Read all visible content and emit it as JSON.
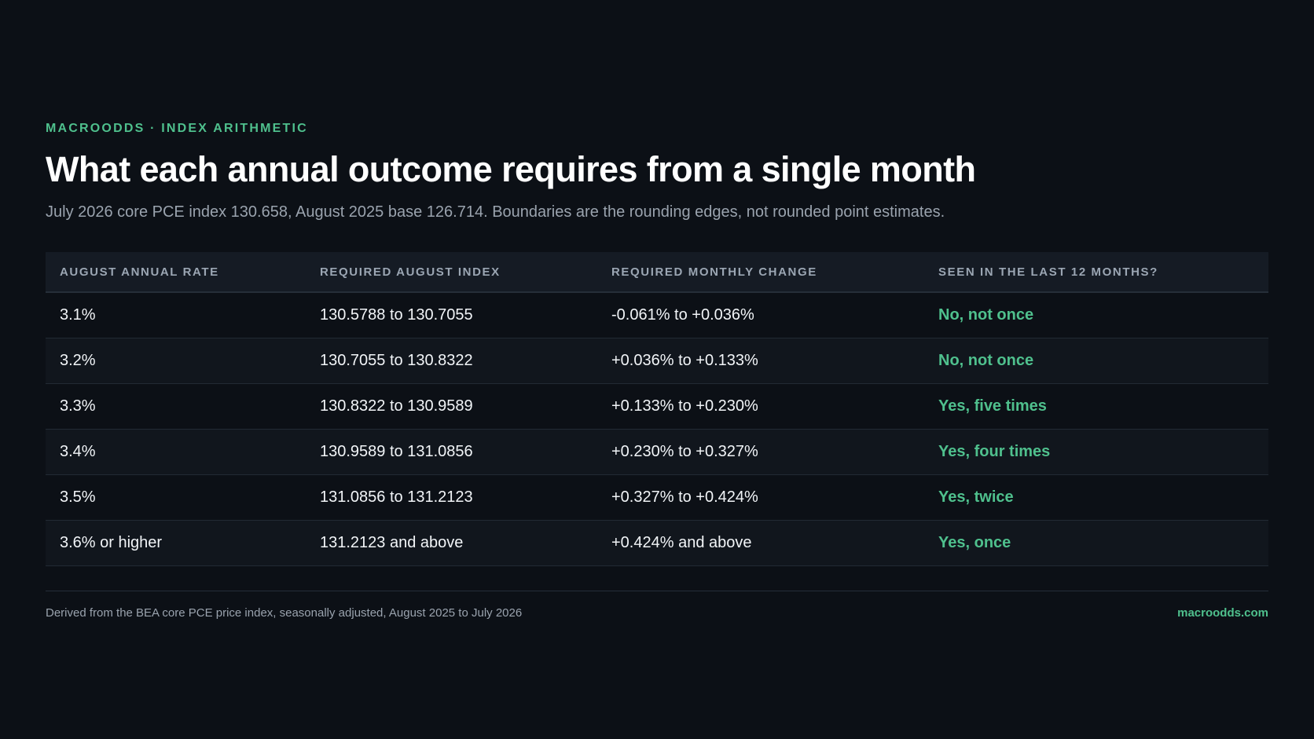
{
  "header": {
    "eyebrow": "MACROODDS · INDEX ARITHMETIC",
    "title": "What each annual outcome requires from a single month",
    "subtitle": "July 2026 core PCE index 130.658, August 2025 base 126.714. Boundaries are the rounding edges, not rounded point estimates."
  },
  "table": {
    "columns": [
      "AUGUST ANNUAL RATE",
      "REQUIRED AUGUST INDEX",
      "REQUIRED MONTHLY CHANGE",
      "SEEN IN THE LAST 12 MONTHS?"
    ],
    "rows": [
      {
        "rate": "3.1%",
        "index": "130.5788 to 130.7055",
        "change": "-0.061% to +0.036%",
        "seen": "No, not once"
      },
      {
        "rate": "3.2%",
        "index": "130.7055 to 130.8322",
        "change": "+0.036% to +0.133%",
        "seen": "No, not once"
      },
      {
        "rate": "3.3%",
        "index": "130.8322 to 130.9589",
        "change": "+0.133% to +0.230%",
        "seen": "Yes, five times"
      },
      {
        "rate": "3.4%",
        "index": "130.9589 to 131.0856",
        "change": "+0.230% to +0.327%",
        "seen": "Yes, four times"
      },
      {
        "rate": "3.5%",
        "index": "131.0856 to 131.2123",
        "change": "+0.327% to +0.424%",
        "seen": "Yes, twice"
      },
      {
        "rate": "3.6% or higher",
        "index": "131.2123 and above",
        "change": "+0.424% and above",
        "seen": "Yes, once"
      }
    ]
  },
  "footer": {
    "source": "Derived from the BEA core PCE price index, seasonally adjusted, August 2025 to July 2026",
    "site": "macroodds.com"
  },
  "colors": {
    "accent": "#4fc08d",
    "background": "#0c1016"
  }
}
